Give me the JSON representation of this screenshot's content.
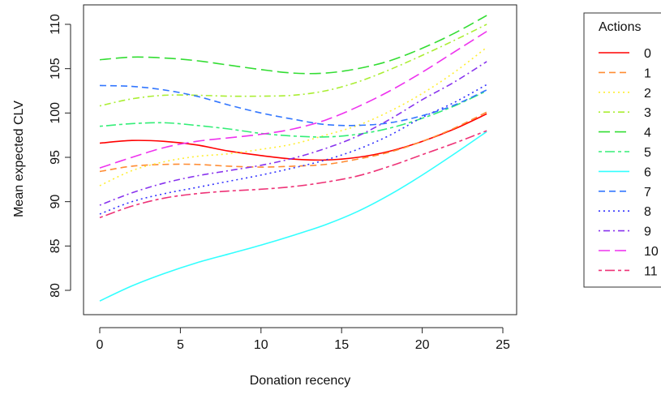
{
  "chart_data": {
    "type": "line",
    "title": "",
    "xlabel": "Donation recency",
    "ylabel": "Mean expected CLV",
    "xlim": [
      0,
      25
    ],
    "ylim": [
      79,
      111
    ],
    "xticks": [
      0,
      5,
      10,
      15,
      20,
      25
    ],
    "yticks": [
      80,
      85,
      90,
      95,
      100,
      105,
      110
    ],
    "grid": false,
    "legend": {
      "title": "Actions",
      "placement": "right"
    },
    "x": [
      0,
      2,
      4,
      6,
      8,
      10,
      12,
      14,
      16,
      18,
      20,
      22,
      24
    ],
    "series": [
      {
        "name": "0",
        "color": "#FF0000",
        "dash": "solid",
        "values": [
          96.6,
          96.9,
          96.8,
          96.4,
          95.7,
          95.2,
          94.8,
          94.7,
          95.0,
          95.7,
          96.8,
          98.2,
          99.9
        ]
      },
      {
        "name": "1",
        "color": "#FF8C33",
        "dash": "dashed",
        "values": [
          93.4,
          94.0,
          94.2,
          94.2,
          94.0,
          93.9,
          94.0,
          94.2,
          94.8,
          95.6,
          96.8,
          98.3,
          100.1
        ]
      },
      {
        "name": "2",
        "color": "#FFEE33",
        "dash": "dotted",
        "values": [
          91.8,
          93.5,
          94.5,
          95.1,
          95.4,
          95.9,
          96.5,
          97.5,
          98.6,
          100.2,
          102.2,
          104.6,
          107.4
        ]
      },
      {
        "name": "3",
        "color": "#AAEE33",
        "dash": "dotdash",
        "values": [
          100.8,
          101.6,
          102.0,
          102.0,
          101.9,
          101.9,
          102.0,
          102.5,
          103.5,
          104.9,
          106.5,
          108.2,
          110.0
        ]
      },
      {
        "name": "4",
        "color": "#33DD33",
        "dash": "longdash",
        "values": [
          106.0,
          106.3,
          106.2,
          105.9,
          105.4,
          104.9,
          104.5,
          104.5,
          105.0,
          105.9,
          107.3,
          109.0,
          111.0
        ]
      },
      {
        "name": "5",
        "color": "#33EE77",
        "dash": "twodash",
        "values": [
          98.5,
          98.8,
          98.9,
          98.6,
          98.2,
          97.7,
          97.4,
          97.3,
          97.6,
          98.3,
          99.4,
          100.8,
          102.5
        ]
      },
      {
        "name": "6",
        "color": "#33FFFF",
        "dash": "solid",
        "values": [
          78.8,
          80.5,
          81.9,
          83.1,
          84.1,
          85.1,
          86.2,
          87.4,
          88.9,
          90.8,
          93.0,
          95.4,
          97.9
        ]
      },
      {
        "name": "7",
        "color": "#3377FF",
        "dash": "dashed",
        "values": [
          103.1,
          103.0,
          102.6,
          101.9,
          100.9,
          100.0,
          99.3,
          98.7,
          98.6,
          98.9,
          99.7,
          100.9,
          102.6
        ]
      },
      {
        "name": "8",
        "color": "#3333FF",
        "dash": "dotted",
        "values": [
          88.6,
          90.0,
          90.9,
          91.6,
          92.3,
          93.0,
          93.8,
          94.7,
          95.9,
          97.5,
          99.5,
          101.2,
          103.2
        ]
      },
      {
        "name": "9",
        "color": "#8833EE",
        "dash": "dotdash",
        "values": [
          89.6,
          91.0,
          92.1,
          92.9,
          93.5,
          94.1,
          94.9,
          96.0,
          97.4,
          99.3,
          101.5,
          103.5,
          105.8
        ]
      },
      {
        "name": "10",
        "color": "#EE33EE",
        "dash": "longdash",
        "values": [
          93.8,
          95.0,
          96.1,
          96.8,
          97.2,
          97.6,
          98.2,
          99.2,
          100.7,
          102.5,
          104.6,
          106.9,
          109.2
        ]
      },
      {
        "name": "11",
        "color": "#EE3377",
        "dash": "twodash",
        "values": [
          88.2,
          89.5,
          90.4,
          90.9,
          91.2,
          91.4,
          91.7,
          92.2,
          92.9,
          94.0,
          95.3,
          96.6,
          98.0
        ]
      }
    ]
  }
}
